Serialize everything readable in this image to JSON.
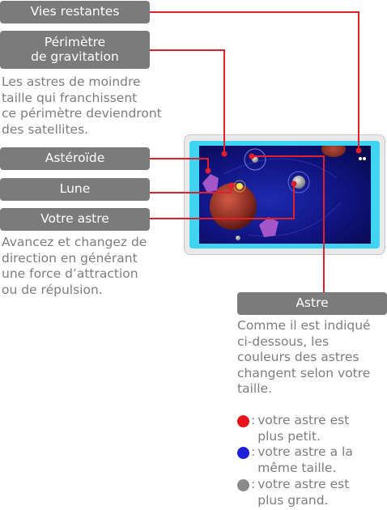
{
  "callouts": {
    "lives": {
      "label": "Vies restantes"
    },
    "gravity": {
      "label": "Périmètre\nde gravitation",
      "description": "Les astres de moindre\ntaille qui franchissent\nce périmètre deviendront\ndes satellites."
    },
    "asteroid": {
      "label": "Astéroïde"
    },
    "moon": {
      "label": "Lune"
    },
    "your_star": {
      "label": "Votre astre",
      "description": "Avancez et changez de\ndirection en générant\nune force d’attraction\nou de répulsion."
    },
    "star": {
      "label": "Astre",
      "description": "Comme il est indiqué\nci-dessous, les\ncouleurs des astres\nchangent selon votre\ntaille."
    }
  },
  "legend": [
    {
      "color": "#e8141c",
      "marker": ":",
      "text": "votre astre est\nplus petit."
    },
    {
      "color": "#1f1fd8",
      "marker": ":",
      "text": "votre astre a la\nmême taille."
    },
    {
      "color": "#8a8a8a",
      "marker": ":",
      "text": "votre astre est\nplus grand."
    }
  ],
  "colors": {
    "label_bg": "#7b7b7b",
    "leader_line": "#e0202a",
    "screen_frame": "#3fd5f2",
    "space_background": "#10137e"
  }
}
